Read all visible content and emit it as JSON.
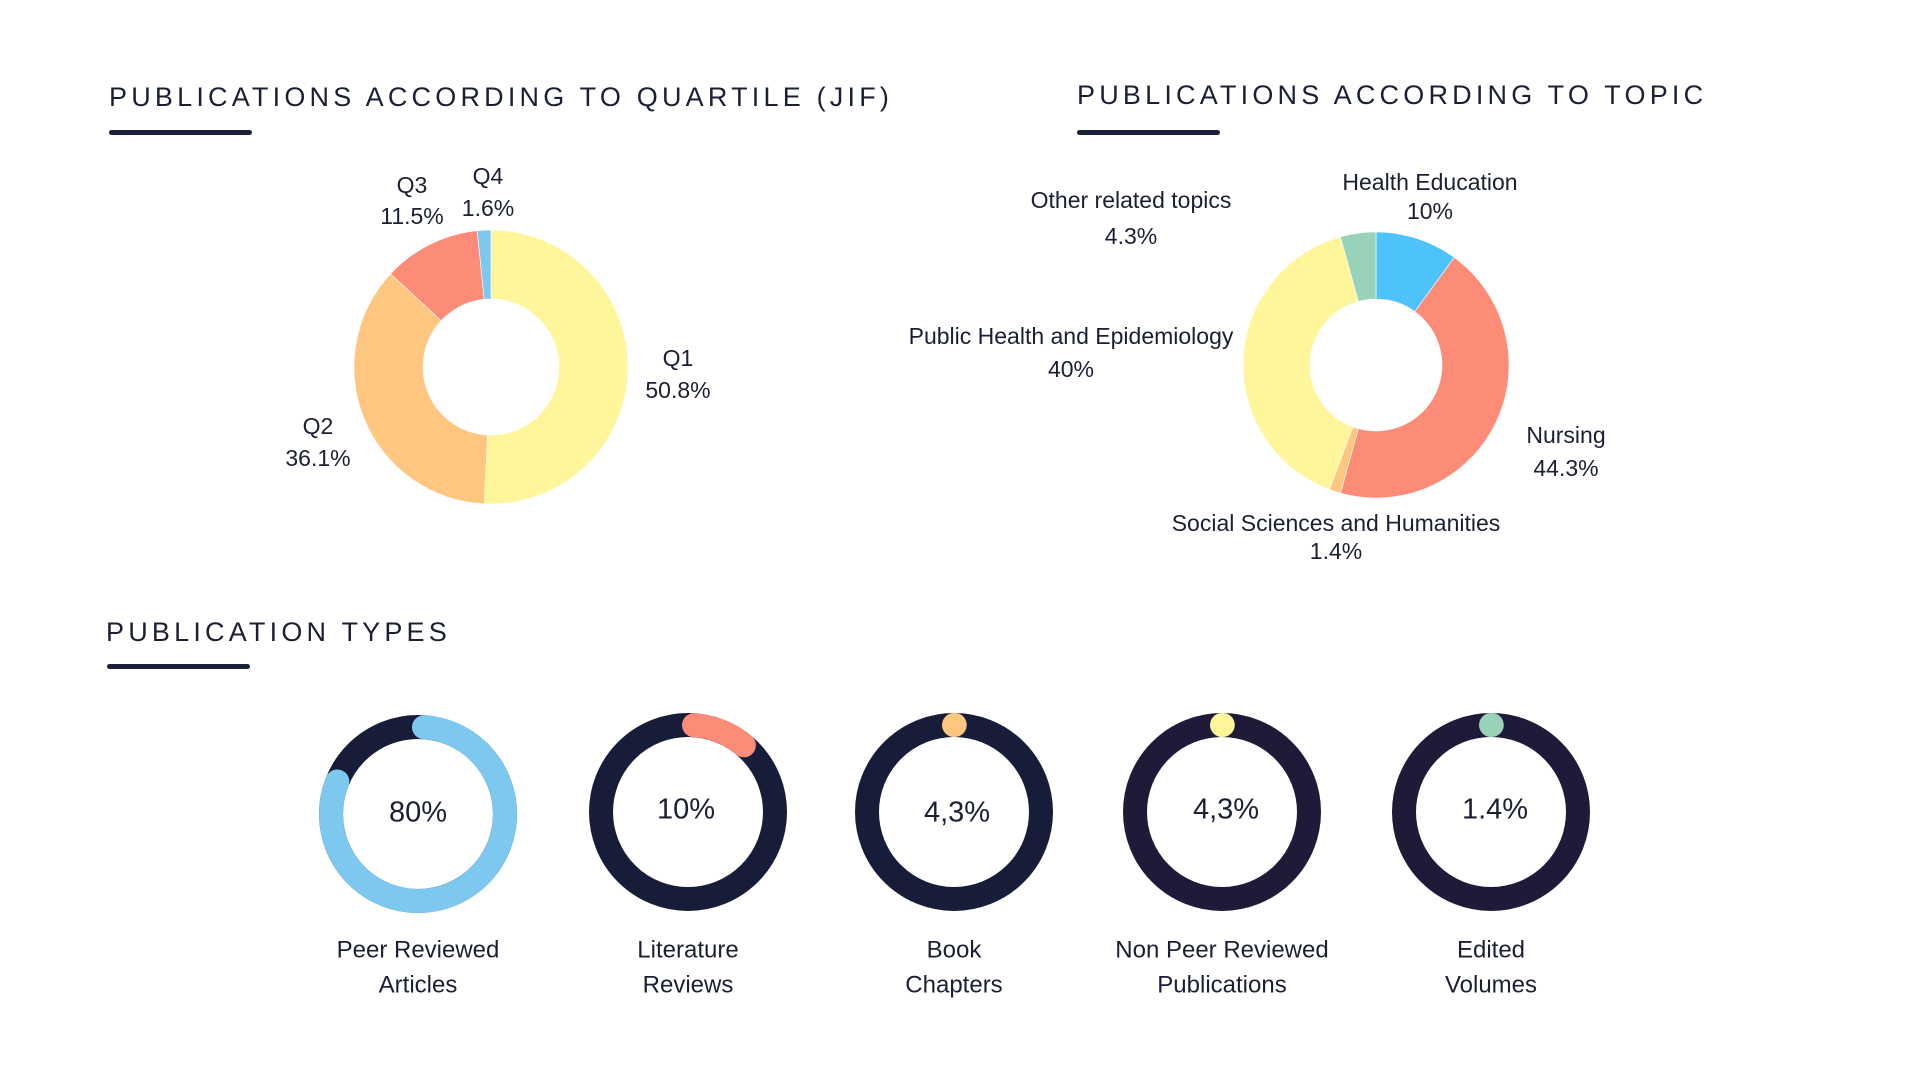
{
  "sections": {
    "quartile_title": "PUBLICATIONS ACCORDING TO QUARTILE (JIF)",
    "topic_title": "PUBLICATIONS ACCORDING TO TOPIC",
    "types_title": "PUBLICATION TYPES"
  },
  "colors": {
    "heading": "#1b1f33",
    "accent_underline": "#1b2238",
    "ring_track_navy": "#171c38",
    "ring_track_purple": "#1e1a38"
  },
  "chart_data": [
    {
      "type": "pie",
      "variant": "donut",
      "title": "PUBLICATIONS ACCORDING TO QUARTILE (JIF)",
      "start": "top",
      "direction": "clockwise",
      "slices": [
        {
          "label": "Q1",
          "value": 50.8,
          "value_label": "50.8%",
          "color": "#fff59b"
        },
        {
          "label": "Q2",
          "value": 36.1,
          "value_label": "36.1%",
          "color": "#ffc67f"
        },
        {
          "label": "Q3",
          "value": 11.5,
          "value_label": "11.5%",
          "color": "#fc8c78"
        },
        {
          "label": "Q4",
          "value": 1.6,
          "value_label": "1.6%",
          "color": "#7cc8ef"
        }
      ]
    },
    {
      "type": "pie",
      "variant": "donut",
      "title": "PUBLICATIONS ACCORDING TO TOPIC",
      "start": "top",
      "direction": "clockwise",
      "slices": [
        {
          "label": "Health Education",
          "value": 10,
          "value_label": "10%",
          "color": "#4ec3fa"
        },
        {
          "label": "Nursing",
          "value": 44.3,
          "value_label": "44.3%",
          "color": "#fc8c78"
        },
        {
          "label": "Social Sciences and Humanities",
          "value": 1.4,
          "value_label": "1.4%",
          "color": "#ffc67f"
        },
        {
          "label": "Public Health and Epidemiology",
          "value": 40,
          "value_label": "40%",
          "color": "#fff59b"
        },
        {
          "label": "Other related topics",
          "value": 4.3,
          "value_label": "4.3%",
          "color": "#98d2b8"
        }
      ]
    },
    {
      "type": "pie",
      "variant": "progress-rings",
      "title": "PUBLICATION TYPES",
      "items": [
        {
          "label_line1": "Peer Reviewed",
          "label_line2": "Articles",
          "value": 80,
          "value_label": "80%",
          "color": "#7cc8ef",
          "track": "#171c38"
        },
        {
          "label_line1": "Literature",
          "label_line2": "Reviews",
          "value": 10,
          "value_label": "10%",
          "color": "#fc8c78",
          "track": "#171c38"
        },
        {
          "label_line1": "Book",
          "label_line2": "Chapters",
          "value": 4.3,
          "value_label": "4,3%",
          "color": "#ffc67f",
          "track": "#171c38"
        },
        {
          "label_line1": "Non Peer Reviewed",
          "label_line2": "Publications",
          "value": 4.3,
          "value_label": "4,3%",
          "color": "#fff59b",
          "track": "#1e1a38"
        },
        {
          "label_line1": "Edited",
          "label_line2": "Volumes",
          "value": 1.4,
          "value_label": "1.4%",
          "color": "#98d2b8",
          "track": "#1e1a38"
        }
      ]
    }
  ]
}
